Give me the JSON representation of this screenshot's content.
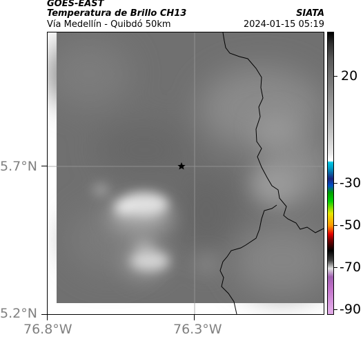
{
  "header": {
    "satellite": "GOES-EAST",
    "product": "Temperatura de Brillo CH13",
    "brand": "SIATA",
    "region": "Vía Medellín - Quibdó 50km",
    "timestamp": "2024-01-15 05:19"
  },
  "map": {
    "lat_labels": [
      "5.7°N",
      "5.2°N"
    ],
    "lon_labels": [
      "76.8°W",
      "76.3°W"
    ],
    "marker": "star-icon",
    "colors": {
      "frame": "#000000",
      "gridline": "#9a9a9a",
      "base_gray": "#6f6f6f",
      "cloud": "#e6e6e6"
    }
  },
  "colorbar": {
    "ticks": [
      "20",
      "-30",
      "-50",
      "-70",
      "-90"
    ],
    "colors": [
      "#000000",
      "#3a3a3a",
      "#7a7a7a",
      "#c8c8c8",
      "#ffffff",
      "#00c8e6",
      "#1a237e",
      "#00a000",
      "#e6e600",
      "#e60000",
      "#000000",
      "#b05cc0"
    ]
  }
}
